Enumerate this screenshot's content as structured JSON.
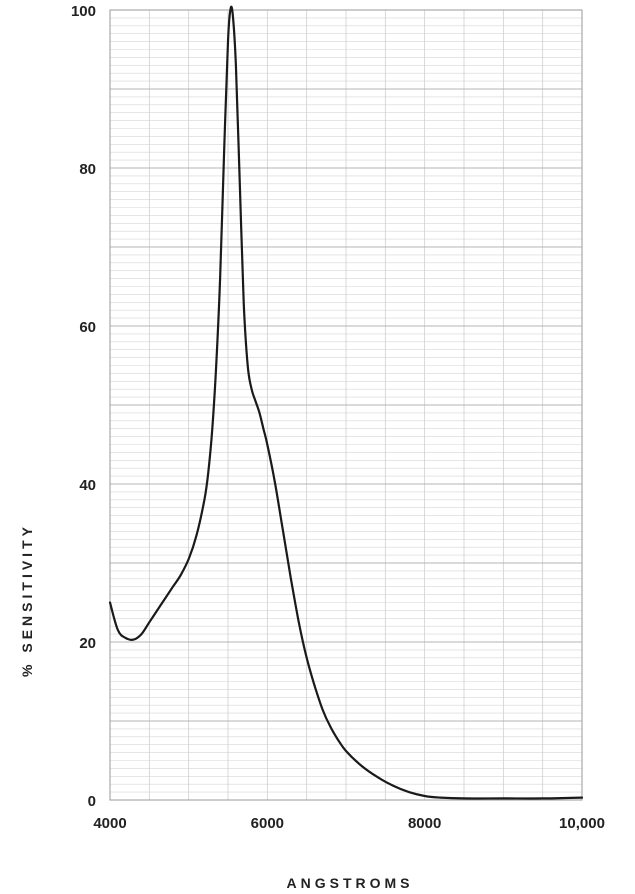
{
  "chart_data": {
    "type": "line",
    "title": "",
    "xlabel": "ANGSTROMS",
    "ylabel": "% SENSITIVITY",
    "xlim": [
      4000,
      10000
    ],
    "ylim": [
      0,
      100
    ],
    "grid": true,
    "x_ticks": [
      4000,
      6000,
      8000,
      10000
    ],
    "x_tick_labels": [
      "4000",
      "6000",
      "8000",
      "10,000"
    ],
    "y_ticks": [
      0,
      20,
      40,
      60,
      80,
      100
    ],
    "y_tick_labels": [
      "0",
      "20",
      "40",
      "60",
      "80",
      "100"
    ],
    "line_color": "#1a1a1a",
    "series": [
      {
        "x": [
          4000,
          4100,
          4200,
          4300,
          4400,
          4500,
          4600,
          4700,
          4800,
          4900,
          5000,
          5100,
          5200,
          5250,
          5300,
          5350,
          5400,
          5450,
          5500,
          5530,
          5560,
          5600,
          5650,
          5700,
          5750,
          5800,
          5850,
          5900,
          5950,
          6000,
          6100,
          6200,
          6300,
          6400,
          6500,
          6600,
          6700,
          6800,
          6900,
          7000,
          7200,
          7400,
          7600,
          7800,
          8000,
          8200,
          8500,
          9000,
          9500,
          10000
        ],
        "y": [
          25,
          21.5,
          20.5,
          20.3,
          21,
          22.5,
          24,
          25.5,
          27,
          28.5,
          30.5,
          33.5,
          38,
          41.5,
          47,
          55,
          66,
          82,
          96,
          100,
          99.5,
          93,
          78,
          63,
          55,
          52,
          50.5,
          49,
          47,
          45,
          40,
          34,
          28,
          22.5,
          18,
          14.5,
          11.5,
          9.3,
          7.6,
          6.2,
          4.3,
          2.9,
          1.8,
          1.0,
          0.5,
          0.3,
          0.2,
          0.2,
          0.2,
          0.3
        ]
      }
    ]
  }
}
